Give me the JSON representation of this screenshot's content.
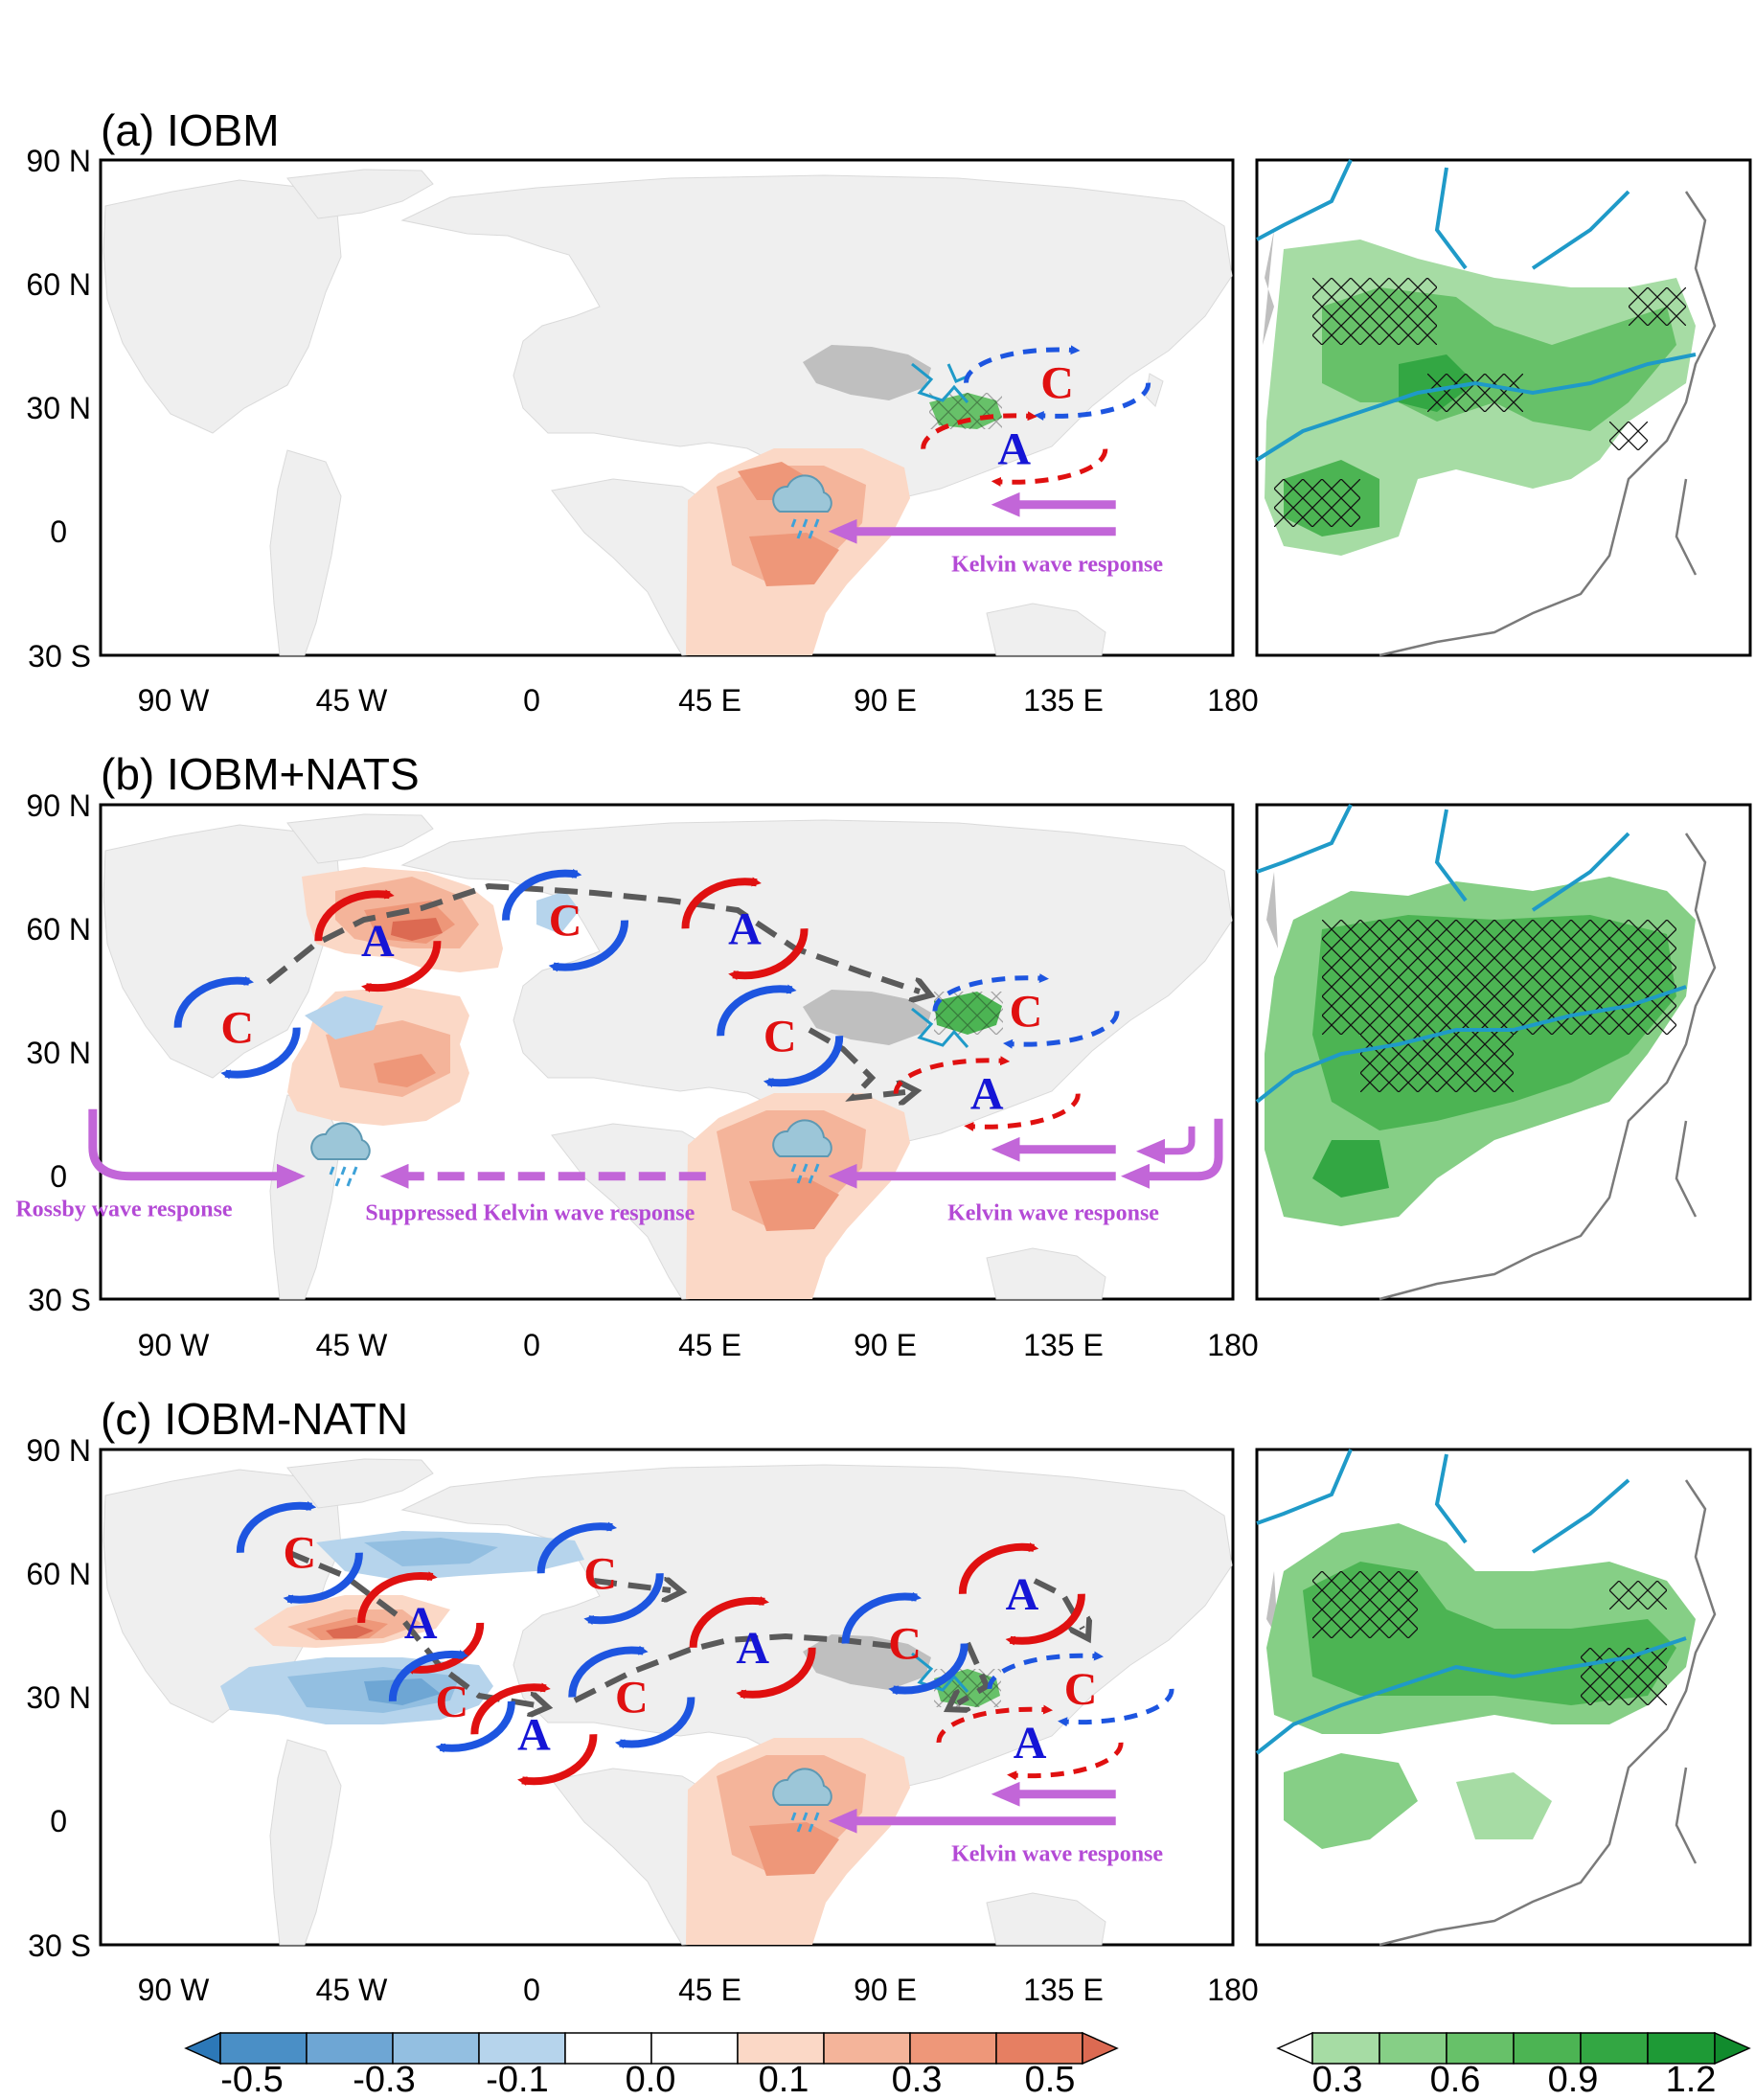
{
  "panels": [
    {
      "title": "(a) IOBM",
      "regional_hatching": "sparse",
      "circulation": [
        {
          "label": "C",
          "lon": 135,
          "lat": 36,
          "rot": "ccw",
          "style": "dashed",
          "color": "blue"
        },
        {
          "label": "A",
          "lon": 124,
          "lat": 20,
          "rot": "cw",
          "style": "dashed",
          "color": "red"
        }
      ],
      "wave_arrows": [
        {
          "text": "Kelvin wave response",
          "lon": 135,
          "lat": -5
        }
      ]
    },
    {
      "title": "(b) IOBM+NATS",
      "regional_hatching": "dense",
      "circulation": [
        {
          "label": "A",
          "lon": -39,
          "lat": 57,
          "rot": "cw",
          "style": "solid",
          "color": "red"
        },
        {
          "label": "C",
          "lon": -75,
          "lat": 36,
          "rot": "ccw",
          "style": "solid",
          "color": "blue"
        },
        {
          "label": "C",
          "lon": 9,
          "lat": 62,
          "rot": "ccw",
          "style": "solid",
          "color": "blue"
        },
        {
          "label": "A",
          "lon": 55,
          "lat": 60,
          "rot": "cw",
          "style": "solid",
          "color": "red"
        },
        {
          "label": "C",
          "lon": 64,
          "lat": 34,
          "rot": "ccw",
          "style": "solid",
          "color": "blue"
        },
        {
          "label": "C",
          "lon": 127,
          "lat": 40,
          "rot": "ccw",
          "style": "dashed",
          "color": "blue"
        },
        {
          "label": "A",
          "lon": 117,
          "lat": 20,
          "rot": "cw",
          "style": "dashed",
          "color": "red"
        }
      ],
      "wave_arrows": [
        {
          "text": "Rossby wave response",
          "lon": -104,
          "lat": -5
        },
        {
          "text": "Suppressed Kelvin wave response",
          "lon": 0,
          "lat": -6
        },
        {
          "text": "Kelvin wave response",
          "lon": 134,
          "lat": -6
        }
      ]
    },
    {
      "title": "(c) IOBM-NATN",
      "regional_hatching": "moderate",
      "circulation": [
        {
          "label": "C",
          "lon": -59,
          "lat": 65,
          "rot": "ccw",
          "style": "solid",
          "color": "blue"
        },
        {
          "label": "A",
          "lon": -28,
          "lat": 48,
          "rot": "cw",
          "style": "solid",
          "color": "red"
        },
        {
          "label": "C",
          "lon": -20,
          "lat": 29,
          "rot": "ccw",
          "style": "solid",
          "color": "blue"
        },
        {
          "label": "A",
          "lon": 1,
          "lat": 21,
          "rot": "cw",
          "style": "solid",
          "color": "red"
        },
        {
          "label": "C",
          "lon": 18,
          "lat": 60,
          "rot": "ccw",
          "style": "solid",
          "color": "blue"
        },
        {
          "label": "C",
          "lon": 26,
          "lat": 30,
          "rot": "ccw",
          "style": "solid",
          "color": "blue"
        },
        {
          "label": "A",
          "lon": 57,
          "lat": 42,
          "rot": "cw",
          "style": "solid",
          "color": "red"
        },
        {
          "label": "C",
          "lon": 96,
          "lat": 43,
          "rot": "ccw",
          "style": "solid",
          "color": "blue"
        },
        {
          "label": "A",
          "lon": 126,
          "lat": 55,
          "rot": "cw",
          "style": "solid",
          "color": "red"
        },
        {
          "label": "C",
          "lon": 141,
          "lat": 32,
          "rot": "ccw",
          "style": "dashed",
          "color": "blue"
        },
        {
          "label": "A",
          "lon": 128,
          "lat": 19,
          "rot": "cw",
          "style": "dashed",
          "color": "red"
        }
      ],
      "wave_arrows": [
        {
          "text": "Kelvin wave response",
          "lon": 135,
          "lat": -5
        }
      ]
    }
  ],
  "lon_ticks": [
    "90 W",
    "45 W",
    "0",
    "45 E",
    "90 E",
    "135 E",
    "180"
  ],
  "lat_ticks": [
    "90 N",
    "60 N",
    "30 N",
    "0",
    "30 S"
  ],
  "map_extent": {
    "lon": [
      -110,
      180
    ],
    "lat": [
      -30,
      90
    ]
  },
  "colorbar_sst": {
    "labels": [
      "-0.5",
      "-0.3",
      "-0.1",
      "0.0",
      "0.1",
      "0.3",
      "0.5"
    ],
    "colors": [
      "#2c78b8",
      "#4a8fc6",
      "#6ea6d4",
      "#93bfe1",
      "#b6d4ec",
      "#ffffff",
      "#ffffff",
      "#fbd8c6",
      "#f4b49a",
      "#ee9779",
      "#e67f62",
      "#dc6a52"
    ],
    "extend": "both"
  },
  "colorbar_precip": {
    "labels": [
      "0.3",
      "0.6",
      "0.9",
      "1.2"
    ],
    "colors": [
      "#ffffff",
      "#a6dca4",
      "#86cf86",
      "#67c169",
      "#4cb453",
      "#33a743",
      "#1e9a36",
      "#118b2d"
    ],
    "extend": "both"
  },
  "colors": {
    "land": "#efefef",
    "tibet": "#bfbfbf",
    "river": "#1f9ac8",
    "arrow_path": "#5a5a5a",
    "wave_arrow": "#c266d8"
  }
}
